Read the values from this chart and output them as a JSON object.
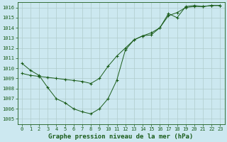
{
  "title": "Graphe pression niveau de la mer (hPa)",
  "background_color": "#cce8f0",
  "grid_color": "#b0cccc",
  "line_color": "#1a5c1a",
  "xlim": [
    -0.5,
    23.5
  ],
  "ylim": [
    1004.5,
    1016.5
  ],
  "xticks": [
    0,
    1,
    2,
    3,
    4,
    5,
    6,
    7,
    8,
    9,
    10,
    11,
    12,
    13,
    14,
    15,
    16,
    17,
    18,
    19,
    20,
    21,
    22,
    23
  ],
  "yticks": [
    1005,
    1006,
    1007,
    1008,
    1009,
    1010,
    1011,
    1012,
    1013,
    1014,
    1015,
    1016
  ],
  "series1_x": [
    0,
    1,
    2,
    3,
    4,
    5,
    6,
    7,
    8,
    9,
    10,
    11,
    12,
    13,
    14,
    15,
    16,
    17,
    18,
    19,
    20,
    21,
    22,
    23
  ],
  "series1_y": [
    1010.5,
    1009.8,
    1009.3,
    1008.1,
    1007.0,
    1006.6,
    1006.0,
    1005.7,
    1005.5,
    1006.0,
    1007.0,
    1008.8,
    1011.8,
    1012.8,
    1013.2,
    1013.3,
    1014.0,
    1015.4,
    1015.0,
    1016.1,
    1016.2,
    1016.1,
    1016.2,
    1016.2
  ],
  "series2_x": [
    0,
    1,
    2,
    3,
    4,
    5,
    6,
    7,
    8,
    9,
    10,
    11,
    12,
    13,
    14,
    15,
    16,
    17,
    18,
    19,
    20,
    21,
    22,
    23
  ],
  "series2_y": [
    1009.5,
    1009.3,
    1009.2,
    1009.1,
    1009.0,
    1008.9,
    1008.8,
    1008.7,
    1008.5,
    1009.0,
    1010.2,
    1011.2,
    1012.0,
    1012.8,
    1013.2,
    1013.5,
    1014.0,
    1015.2,
    1015.5,
    1016.0,
    1016.1,
    1016.1,
    1016.2,
    1016.2
  ],
  "title_fontsize": 6.5,
  "tick_fontsize": 5.0
}
